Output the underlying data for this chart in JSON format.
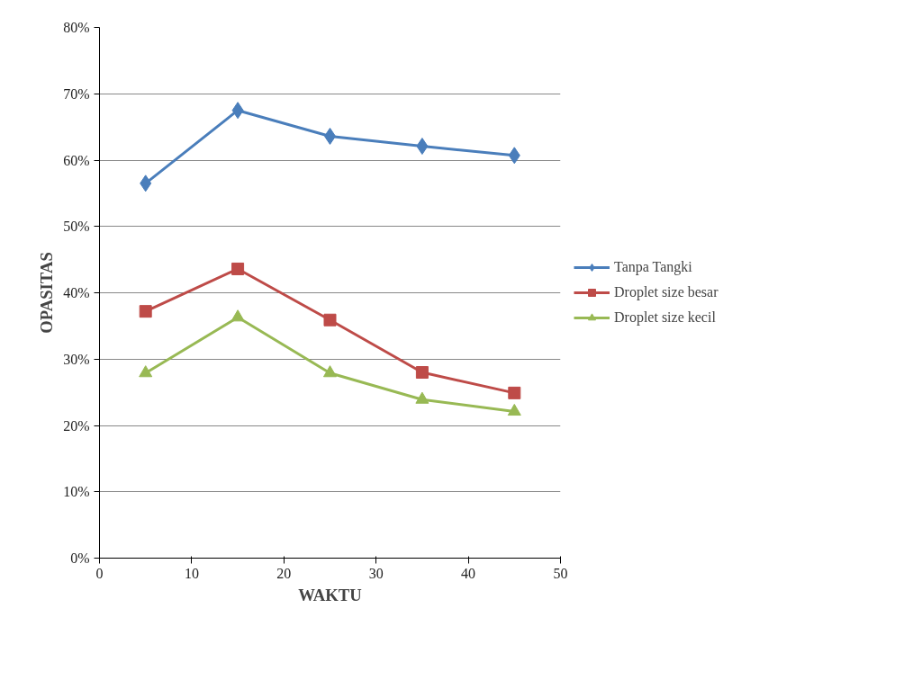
{
  "chart_data": {
    "type": "line",
    "xlabel": "WAKTU",
    "ylabel": "OPASITAS",
    "x": [
      5,
      15,
      25,
      35,
      45
    ],
    "series": [
      {
        "name": "Tanpa Tangki",
        "color": "#4a7ebb",
        "marker": "diamond",
        "values": [
          56.5,
          67.5,
          63.6,
          62.1,
          60.7
        ]
      },
      {
        "name": "Droplet size besar",
        "color": "#be4b48",
        "marker": "square",
        "values": [
          37.2,
          43.6,
          35.9,
          28.0,
          24.9
        ]
      },
      {
        "name": "Droplet size kecil",
        "color": "#98b954",
        "marker": "triangle",
        "values": [
          27.9,
          36.3,
          27.9,
          23.9,
          22.1
        ]
      }
    ],
    "xlim": [
      0,
      50
    ],
    "xticks": [
      0,
      10,
      20,
      30,
      40,
      50
    ],
    "ylim": [
      0,
      80
    ],
    "yticks": [
      {
        "value": 0,
        "label": "0%"
      },
      {
        "value": 10,
        "label": "10%"
      },
      {
        "value": 20,
        "label": "20%"
      },
      {
        "value": 30,
        "label": "30%"
      },
      {
        "value": 40,
        "label": "40%"
      },
      {
        "value": 50,
        "label": "50%"
      },
      {
        "value": 60,
        "label": "60%"
      },
      {
        "value": 70,
        "label": "70%"
      },
      {
        "value": 80,
        "label": "80%"
      }
    ],
    "grid": "y",
    "legend": "right",
    "line_style": "solid"
  }
}
